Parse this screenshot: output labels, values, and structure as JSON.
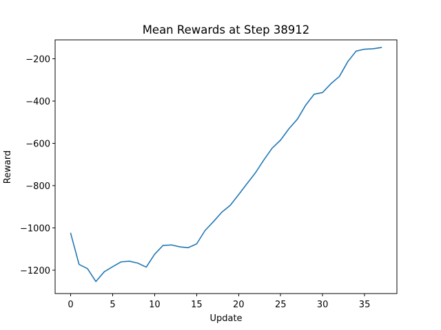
{
  "chart_data": {
    "type": "line",
    "title": "Mean Rewards at Step 38912",
    "xlabel": "Update",
    "ylabel": "Reward",
    "xlim": [
      -1.85,
      38.85
    ],
    "ylim": [
      -1310,
      -110
    ],
    "xticks": [
      0,
      5,
      10,
      15,
      20,
      25,
      30,
      35
    ],
    "yticks": [
      -1200,
      -1000,
      -800,
      -600,
      -400,
      -200
    ],
    "grid": false,
    "series": [
      {
        "color": "#1f77b4",
        "x": [
          0,
          1,
          2,
          3,
          4,
          5,
          6,
          7,
          8,
          9,
          10,
          11,
          12,
          13,
          14,
          15,
          16,
          17,
          18,
          19,
          20,
          21,
          22,
          23,
          24,
          25,
          26,
          27,
          28,
          29,
          30,
          31,
          32,
          33,
          34,
          35,
          36,
          37
        ],
        "y": [
          -1025,
          -1172,
          -1192,
          -1253,
          -1207,
          -1183,
          -1160,
          -1157,
          -1166,
          -1185,
          -1124,
          -1082,
          -1080,
          -1089,
          -1093,
          -1075,
          -1012,
          -970,
          -925,
          -893,
          -842,
          -790,
          -739,
          -678,
          -622,
          -584,
          -530,
          -485,
          -418,
          -367,
          -359,
          -317,
          -283,
          -213,
          -163,
          -154,
          -152,
          -146
        ]
      }
    ]
  }
}
